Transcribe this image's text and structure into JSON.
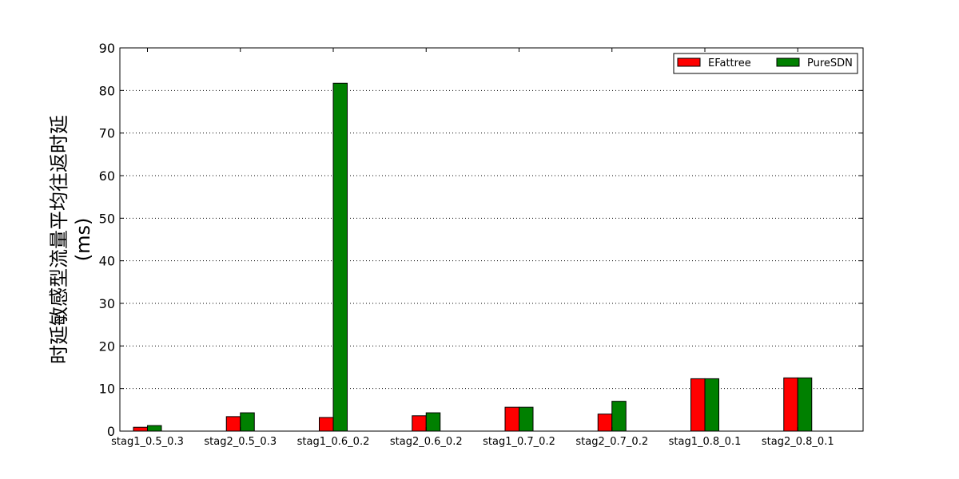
{
  "chart_data": {
    "type": "bar",
    "title": "",
    "xlabel": "",
    "ylabel_line1": "时延敏感型流量平均往返时延",
    "ylabel_line2": "(ms)",
    "categories": [
      "stag1_0.5_0.3",
      "stag2_0.5_0.3",
      "stag1_0.6_0.2",
      "stag2_0.6_0.2",
      "stag1_0.7_0.2",
      "stag2_0.7_0.2",
      "stag1_0.8_0.1",
      "stag2_0.8_0.1"
    ],
    "series": [
      {
        "name": "EFattree",
        "color": "#ff0000",
        "values": [
          0.9,
          3.4,
          3.2,
          3.6,
          5.6,
          4.0,
          12.3,
          12.5
        ]
      },
      {
        "name": "PureSDN",
        "color": "#008000",
        "values": [
          1.3,
          4.3,
          81.7,
          4.3,
          5.6,
          7.0,
          12.3,
          12.5
        ]
      }
    ],
    "ylim": [
      0,
      90
    ],
    "yticks": [
      0,
      10,
      20,
      30,
      40,
      50,
      60,
      70,
      80,
      90
    ],
    "grid": "horizontal-dotted",
    "legend_position": "top-right"
  }
}
